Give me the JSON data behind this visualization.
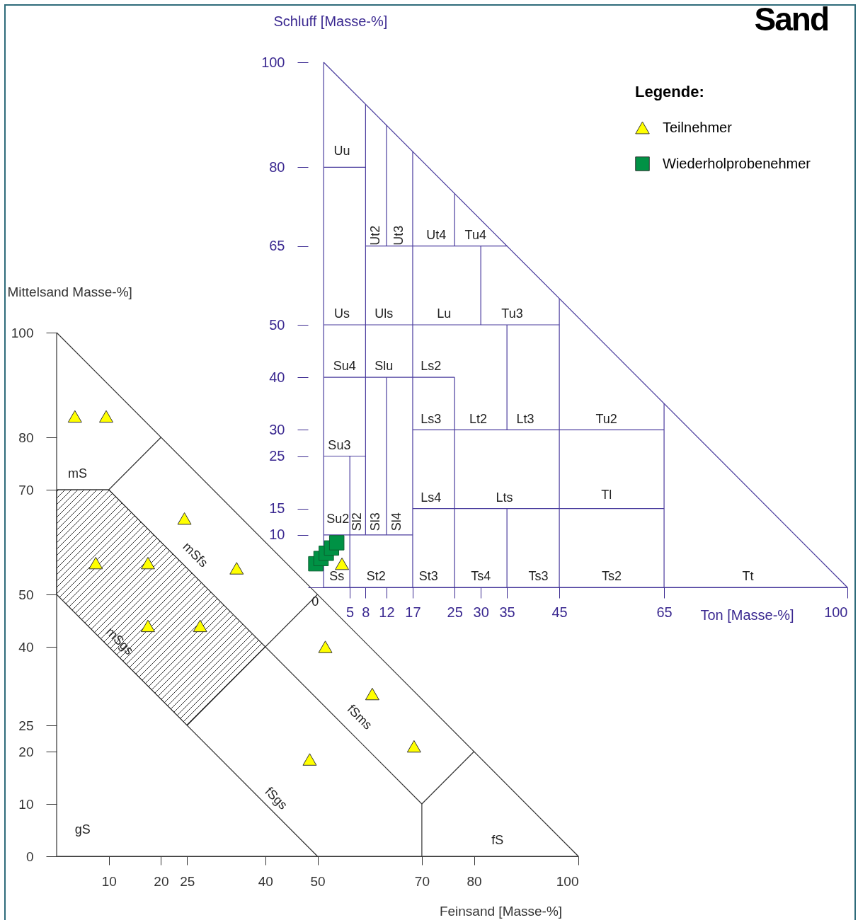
{
  "chart_data": [
    {
      "type": "scatter",
      "title": "Sand",
      "xlabel": "Ton [Masse-%]",
      "ylabel": "Schluff [Masse-%]",
      "legend_title": "Legende:",
      "legend": "top right",
      "xlim": [
        -3,
        100
      ],
      "ylim": [
        0,
        100
      ],
      "xticks": [
        5,
        8,
        12,
        17,
        25,
        30,
        35,
        45,
        65,
        100
      ],
      "yticks": [
        10,
        15,
        25,
        30,
        40,
        50,
        65,
        80,
        100
      ],
      "series": [
        {
          "type": "line",
          "color": "#4b3d9e",
          "x": [
            0,
            0
          ],
          "values": [
            0,
            100
          ]
        },
        {
          "type": "line",
          "color": "#4b3d9e",
          "x": [
            0,
            100
          ],
          "values": [
            100,
            0
          ]
        },
        {
          "type": "line",
          "color": "#4b3d9e",
          "x": [
            0,
            100
          ],
          "values": [
            0,
            0
          ]
        },
        {
          "type": "line",
          "color": "#4b3d9e",
          "x": [
            0,
            8
          ],
          "values": [
            80,
            80
          ]
        },
        {
          "type": "line",
          "color": "#4b3d9e",
          "x": [
            8,
            8
          ],
          "values": [
            10,
            92
          ]
        },
        {
          "type": "line",
          "color": "#4b3d9e",
          "x": [
            12,
            12
          ],
          "values": [
            65,
            88
          ]
        },
        {
          "type": "line",
          "color": "#4b3d9e",
          "x": [
            12,
            12
          ],
          "values": [
            10,
            40
          ]
        },
        {
          "type": "line",
          "color": "#4b3d9e",
          "x": [
            17,
            17
          ],
          "values": [
            0,
            83
          ]
        },
        {
          "type": "line",
          "color": "#4b3d9e",
          "x": [
            8,
            35
          ],
          "values": [
            65,
            65
          ]
        },
        {
          "type": "line",
          "color": "#4b3d9e",
          "x": [
            25,
            25
          ],
          "values": [
            65,
            75
          ]
        },
        {
          "type": "line",
          "color": "#4b3d9e",
          "x": [
            25,
            25
          ],
          "values": [
            0,
            40
          ]
        },
        {
          "type": "line",
          "color": "#4b3d9e",
          "x": [
            30,
            30
          ],
          "values": [
            50,
            65
          ]
        },
        {
          "type": "line",
          "color": "#4b3d9e",
          "x": [
            0,
            45
          ],
          "values": [
            50,
            50
          ]
        },
        {
          "type": "line",
          "color": "#4b3d9e",
          "x": [
            45,
            45
          ],
          "values": [
            0,
            55
          ]
        },
        {
          "type": "line",
          "color": "#4b3d9e",
          "x": [
            35,
            35
          ],
          "values": [
            30,
            50
          ]
        },
        {
          "type": "line",
          "color": "#4b3d9e",
          "x": [
            35,
            35
          ],
          "values": [
            0,
            15
          ]
        },
        {
          "type": "line",
          "color": "#4b3d9e",
          "x": [
            0,
            25
          ],
          "values": [
            40,
            40
          ]
        },
        {
          "type": "line",
          "color": "#4b3d9e",
          "x": [
            17,
            65
          ],
          "values": [
            30,
            30
          ]
        },
        {
          "type": "line",
          "color": "#4b3d9e",
          "x": [
            65,
            65
          ],
          "values": [
            0,
            35
          ]
        },
        {
          "type": "line",
          "color": "#4b3d9e",
          "x": [
            17,
            65
          ],
          "values": [
            15,
            15
          ]
        },
        {
          "type": "line",
          "color": "#4b3d9e",
          "x": [
            0,
            8
          ],
          "values": [
            25,
            25
          ]
        },
        {
          "type": "line",
          "color": "#4b3d9e",
          "x": [
            5,
            5
          ],
          "values": [
            0,
            25
          ]
        },
        {
          "type": "line",
          "color": "#4b3d9e",
          "x": [
            0,
            17
          ],
          "values": [
            10,
            10
          ]
        },
        {
          "name": "Teilnehmer",
          "color": "#ffff00",
          "marker": "triangle",
          "x": [
            3.5
          ],
          "values": [
            4.5
          ]
        },
        {
          "name": "Wiederholprobenehmer",
          "color": "#009245",
          "marker": "square",
          "x": [
            -1.5,
            -0.5,
            0.5,
            1.5,
            2.5
          ],
          "values": [
            4.5,
            5.5,
            6.5,
            7.5,
            8.5
          ]
        }
      ],
      "annotations": [
        "Uu",
        "Ut2",
        "Ut3",
        "Ut4",
        "Tu4",
        "Us",
        "Uls",
        "Lu",
        "Tu3",
        "Su4",
        "Slu",
        "Ls2",
        "Ls3",
        "Lt2",
        "Lt3",
        "Tu2",
        "Su3",
        "Ls4",
        "Lts",
        "Tl",
        "Su2",
        "Sl2",
        "Sl3",
        "Sl4",
        "Ss",
        "St2",
        "St3",
        "Ts4",
        "Ts3",
        "Ts2",
        "Tt",
        "0"
      ]
    },
    {
      "type": "scatter",
      "xlabel": "Feinsand [Masse-%]",
      "ylabel": "Mittelsand Masse-%]",
      "xlim": [
        0,
        100
      ],
      "ylim": [
        0,
        100
      ],
      "xticks": [
        10,
        20,
        25,
        40,
        50,
        70,
        80,
        100
      ],
      "yticks": [
        0,
        10,
        20,
        25,
        40,
        50,
        70,
        80,
        100
      ],
      "series": [
        {
          "type": "area",
          "color": "#333333",
          "x": [
            0,
            0,
            10,
            40,
            25,
            0
          ],
          "values": [
            50,
            70,
            70,
            40,
            25,
            50
          ]
        },
        {
          "type": "line",
          "color": "#333333",
          "x": [
            0,
            0
          ],
          "values": [
            0,
            100
          ]
        },
        {
          "type": "line",
          "color": "#333333",
          "x": [
            0,
            100
          ],
          "values": [
            100,
            0
          ]
        },
        {
          "type": "line",
          "color": "#333333",
          "x": [
            0,
            100
          ],
          "values": [
            0,
            0
          ]
        },
        {
          "type": "line",
          "color": "#333333",
          "x": [
            0,
            10,
            20
          ],
          "values": [
            70,
            70,
            80
          ]
        },
        {
          "type": "line",
          "color": "#333333",
          "x": [
            10,
            70
          ],
          "values": [
            70,
            10
          ]
        },
        {
          "type": "line",
          "color": "#333333",
          "x": [
            70,
            80
          ],
          "values": [
            10,
            20
          ]
        },
        {
          "type": "line",
          "color": "#333333",
          "x": [
            70,
            70
          ],
          "values": [
            0,
            10
          ]
        },
        {
          "type": "line",
          "color": "#333333",
          "x": [
            0,
            50
          ],
          "values": [
            50,
            0
          ]
        },
        {
          "type": "line",
          "color": "#333333",
          "x": [
            25,
            50
          ],
          "values": [
            25,
            50
          ]
        },
        {
          "color": "#ffff00",
          "marker": "triangle",
          "x": [
            3.5,
            9.5,
            24.5,
            7.5,
            17.5,
            34.5,
            17.5,
            27.5,
            51.5,
            60.5,
            68.5,
            48.5
          ],
          "values": [
            84,
            84,
            64.5,
            56,
            56,
            55,
            44,
            44,
            40,
            31,
            21,
            18.5
          ]
        }
      ],
      "annotations": [
        "mS",
        "mSfs",
        "mSgs",
        "fSms",
        "fSgs",
        "gS",
        "fS"
      ]
    }
  ]
}
